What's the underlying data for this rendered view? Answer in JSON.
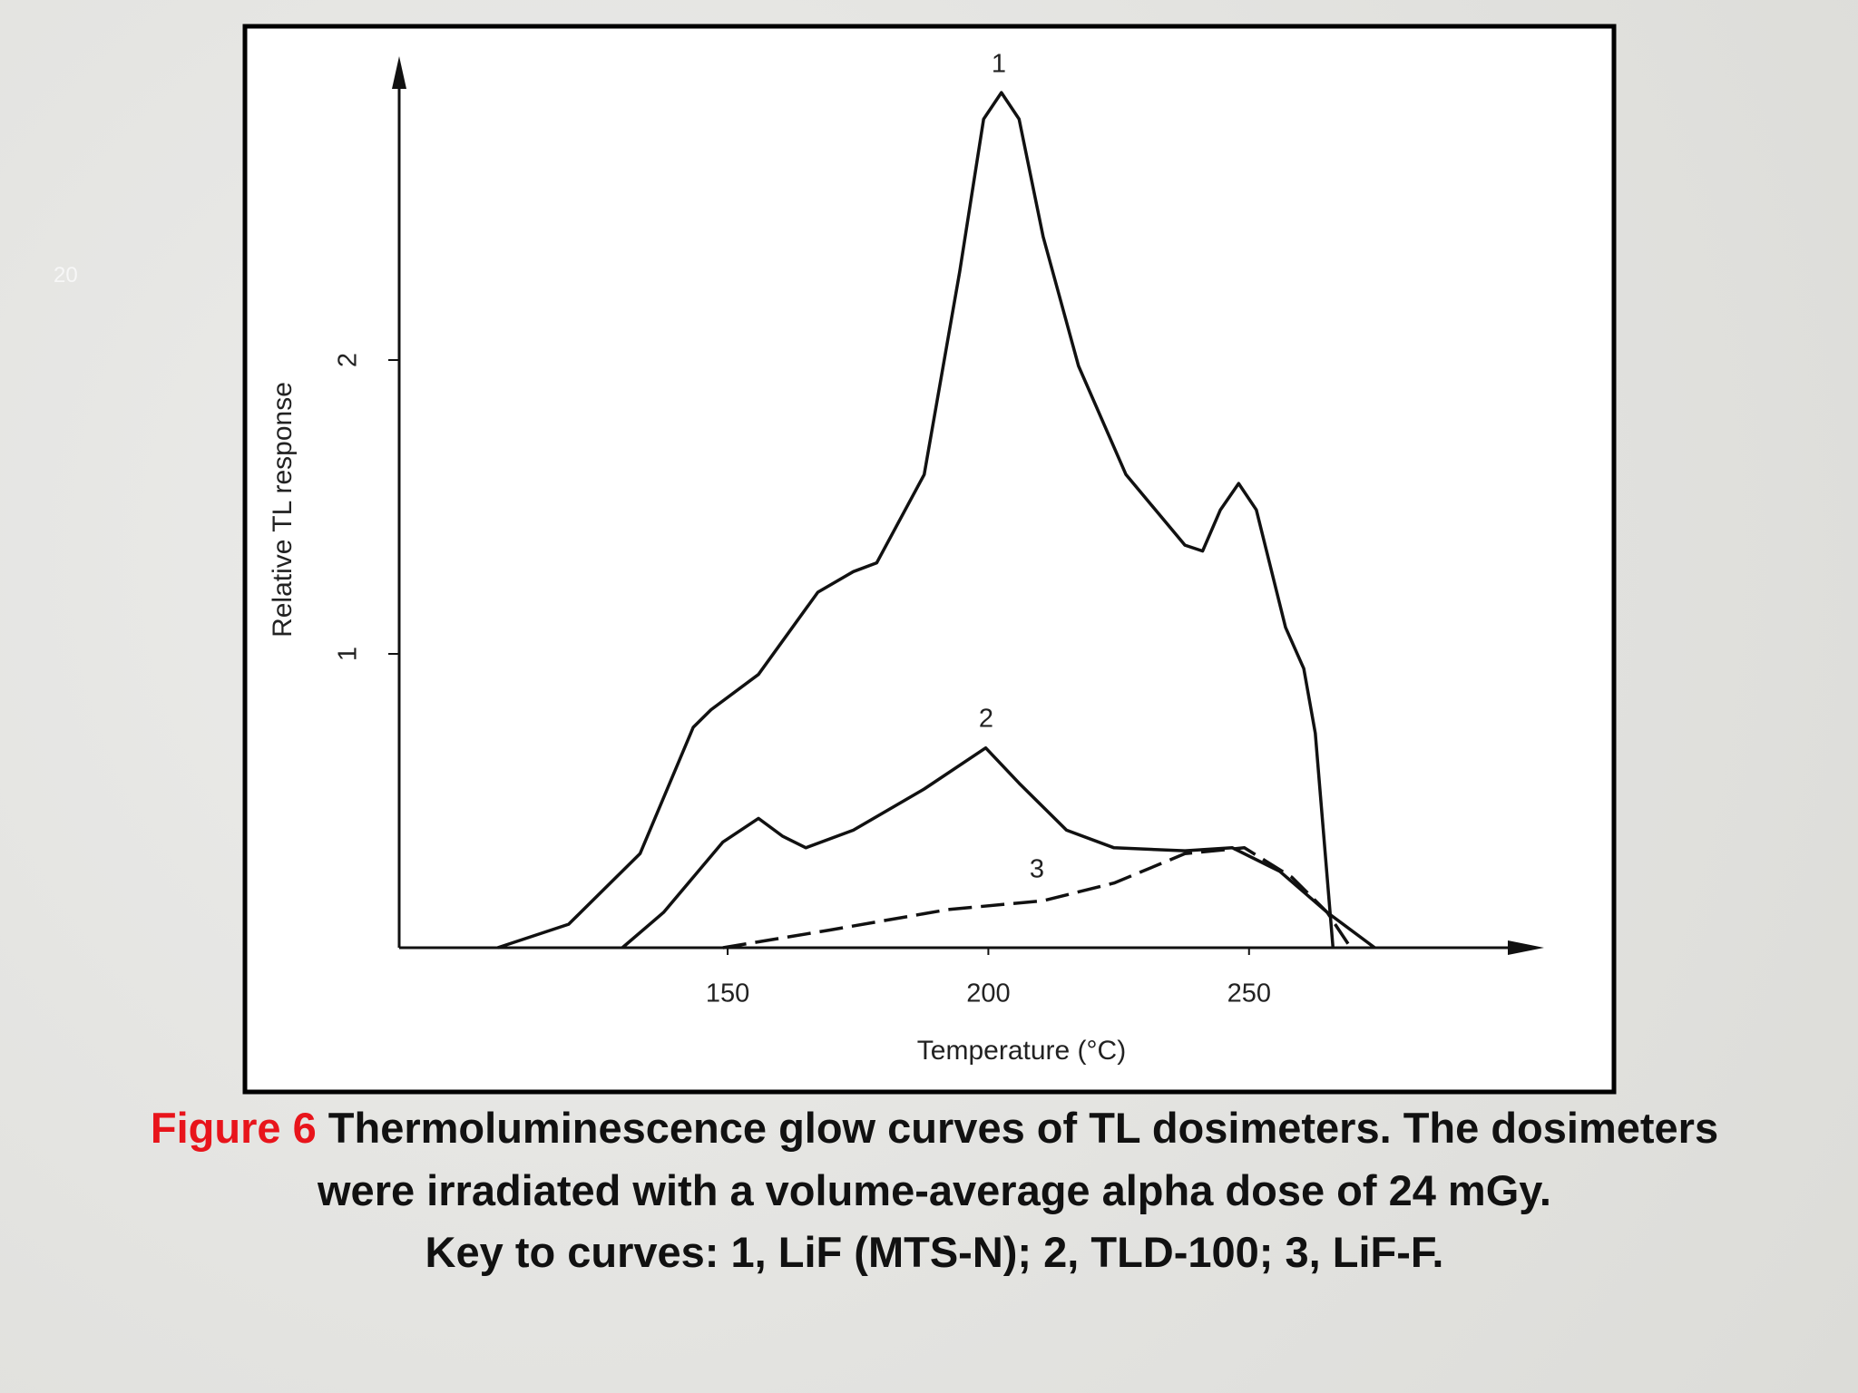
{
  "slide_number": "20",
  "caption": {
    "label": "Figure 6",
    "lines": [
      "Thermoluminescence glow curves of TL dosimeters. The dosimeters",
      "were irradiated with a volume-average alpha dose of 24 mGy.",
      "Key to curves: 1, LiF (MTS-N); 2, TLD-100; 3, LiF-F."
    ]
  },
  "chart_data": {
    "type": "line",
    "x_label": "Temperature (°C)",
    "y_label": "Relative TL response",
    "xlim": [
      87,
      306
    ],
    "ylim": [
      0,
      3.02
    ],
    "xticks": [
      150,
      200,
      250
    ],
    "yticks": [
      1,
      2
    ],
    "grid": false,
    "series": [
      {
        "name": "1",
        "color": "#111111",
        "dashed": false,
        "x": [
          105.9,
          119.5,
          133.2,
          143.4,
          146.8,
          155.9,
          167.3,
          174.1,
          178.6,
          187.7,
          194.5,
          199.1,
          202.5,
          205.9,
          210.5,
          217.3,
          226.4,
          237.7,
          241.1,
          244.5,
          248,
          251.4,
          257,
          260.5,
          262.7,
          266.1
        ],
        "values": [
          0,
          0.08,
          0.32,
          0.75,
          0.81,
          0.93,
          1.21,
          1.28,
          1.31,
          1.61,
          2.3,
          2.82,
          2.91,
          2.82,
          2.42,
          1.98,
          1.61,
          1.37,
          1.35,
          1.49,
          1.58,
          1.49,
          1.09,
          0.95,
          0.73,
          0
        ]
      },
      {
        "name": "2",
        "color": "#111111",
        "dashed": false,
        "x": [
          129.8,
          137.7,
          149.1,
          155.9,
          160.5,
          165,
          174.1,
          187.7,
          199.5,
          205.9,
          215,
          224.1,
          237.7,
          246.8,
          255.9,
          265,
          274.1
        ],
        "values": [
          0,
          0.12,
          0.36,
          0.44,
          0.38,
          0.34,
          0.4,
          0.54,
          0.68,
          0.56,
          0.4,
          0.34,
          0.33,
          0.34,
          0.26,
          0.12,
          0
        ]
      },
      {
        "name": "3",
        "color": "#111111",
        "dashed": true,
        "x": [
          149.1,
          169.5,
          192.3,
          210.5,
          224.1,
          237.7,
          249.1,
          258.2,
          265,
          269.5
        ],
        "values": [
          0,
          0.06,
          0.13,
          0.16,
          0.22,
          0.32,
          0.34,
          0.24,
          0.12,
          0
        ]
      }
    ]
  }
}
